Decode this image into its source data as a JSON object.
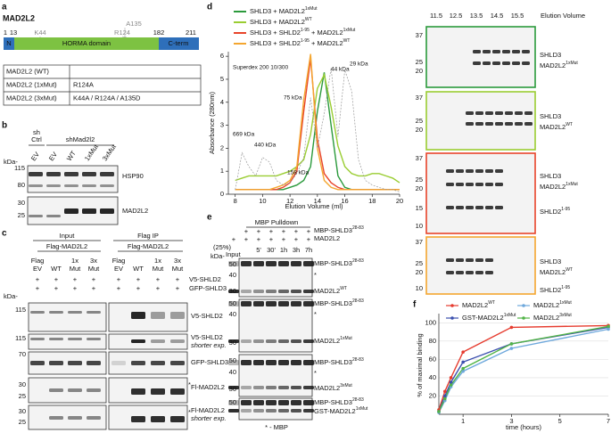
{
  "panels": {
    "a": {
      "letter": "a",
      "title": "MAD2L2",
      "residues": [
        1,
        13,
        182,
        211
      ],
      "mutations": [
        "K44",
        "R124",
        "A135"
      ],
      "domains": [
        "N",
        "HORMA domain",
        "C-term"
      ],
      "table": [
        [
          "MAD2L2 (WT)"
        ],
        [
          "MAD2L2 (1xMut)",
          "R124A"
        ],
        [
          "MAD2L2 (3xMut)",
          "K44A / R124A / A135D"
        ]
      ]
    },
    "b": {
      "letter": "b",
      "control": [
        "sh",
        "Ctrl"
      ],
      "knockdown": "shMad2l2",
      "lanes": [
        "EV",
        "EV",
        "WT",
        "1xMut",
        "3xMut"
      ],
      "kda": "kDa-",
      "blots": [
        {
          "markers": [
            115,
            80
          ],
          "label": "HSP90"
        },
        {
          "markers": [
            30,
            25
          ],
          "label": "MAD2L2"
        }
      ]
    },
    "c": {
      "letter": "c",
      "groups": [
        {
          "header": "Input",
          "construct": "Flag-MAD2L2",
          "lane_flag": "Flag",
          "lane_top": [
            "1x",
            "3x"
          ],
          "lane_bottom": [
            "EV",
            "WT",
            "Mut",
            "Mut"
          ]
        },
        {
          "header": "Flag IP",
          "construct": "Flag-MAD2L2",
          "lane_flag": "Flag",
          "lane_top": [
            "1x",
            "3x"
          ],
          "lane_bottom": [
            "EV",
            "WT",
            "Mut",
            "Mut"
          ]
        }
      ],
      "treatments": [
        {
          "label": "V5-SHLD2",
          "signs": [
            "+",
            "+",
            "+",
            "+",
            "+",
            "+",
            "+",
            "+"
          ]
        },
        {
          "label": "GFP-SHLD3",
          "signs": [
            "+",
            "+",
            "+",
            "+",
            "+",
            "+",
            "+",
            "+"
          ]
        }
      ],
      "kda": "kDa-",
      "blots": [
        {
          "markers": [
            115
          ],
          "label": "V5-SHLD2"
        },
        {
          "markers": [
            115
          ],
          "label": "V5-SHLD2",
          "note": "shorter exp."
        },
        {
          "markers": [
            70
          ],
          "label": "GFP-SHLD3"
        },
        {
          "markers": [
            30,
            25
          ],
          "label": "Fl-MAD2L2",
          "star": "*"
        },
        {
          "markers": [
            30,
            25
          ],
          "label": "Fl-MAD2L2",
          "note": "shorter exp.",
          "star": "*"
        }
      ]
    },
    "d": {
      "letter": "d",
      "gel_header": "Elution Volume",
      "volumes": [
        11.5,
        12.5,
        13.5,
        14.5,
        15.5
      ],
      "gels": [
        {
          "markers": [
            37,
            25,
            20
          ],
          "labels": [
            [
              "SHLD3"
            ],
            [
              "MAD2L2",
              "1xMut"
            ]
          ]
        },
        {
          "markers": [
            37,
            25,
            20
          ],
          "labels": [
            [
              "SHLD3"
            ],
            [
              "MAD2L2",
              "WT"
            ]
          ]
        },
        {
          "markers": [
            37,
            25,
            20,
            15,
            10
          ],
          "labels": [
            [
              "SHLD3"
            ],
            [
              "MAD2L2",
              "1xMut"
            ],
            [
              "SHLD2",
              "1-95"
            ]
          ]
        },
        {
          "markers": [
            37,
            25,
            20,
            10
          ],
          "labels": [
            [
              "SHLD3"
            ],
            [
              "MAD2L2",
              "WT"
            ],
            [
              "SHLD2",
              "1-95"
            ]
          ]
        }
      ]
    },
    "e": {
      "letter": "e",
      "header": "MBP Pulldown",
      "reagents": [
        {
          "label": [
            "MBP-SHLD3",
            "28-83"
          ],
          "signs": [
            "+",
            "+",
            "+",
            "+",
            "+",
            "+"
          ]
        },
        {
          "label": "MAD2L2",
          "signs": [
            "+",
            "+",
            "+",
            "+",
            "+",
            "+",
            "+"
          ]
        }
      ],
      "input": [
        "(25%)",
        "Input"
      ],
      "times": [
        "5'",
        "30'",
        "1h",
        "3h",
        "7h"
      ],
      "kda": "kDa-",
      "gels": [
        {
          "markers": [
            50,
            40,
            30
          ],
          "labels": [
            [
              "MBP-SHLD3",
              "28-83"
            ],
            "*",
            [
              "MAD2L2",
              "WT"
            ]
          ]
        },
        {
          "markers": [
            50,
            40,
            30
          ],
          "labels": [
            [
              "MBP-SHLD3",
              "28-83"
            ],
            "*",
            [
              "MAD2L2",
              "1xMut"
            ]
          ]
        },
        {
          "markers": [
            50,
            40,
            30
          ],
          "labels": [
            [
              "MBP-SHLD3",
              "28-83"
            ],
            "*",
            [
              "MAD2L2",
              "3xMut"
            ]
          ]
        },
        {
          "markers": [
            50
          ],
          "labels": [
            [
              "MBP-SHLD3",
              "28-83"
            ],
            [
              "GST-MAD2L2",
              "1xMut"
            ]
          ]
        }
      ],
      "footnote": "* - MBP"
    },
    "f": {
      "letter": "f"
    }
  },
  "chart_data": [
    {
      "type": "line",
      "xlabel": "Elution Volume (ml)",
      "ylabel": "Absorbance (280nm)",
      "annotations": [
        "Superdex 200 10/300",
        "669 kDa",
        "440 kDa",
        "158 kDa",
        "75 kDa",
        "44 kDa",
        "29 kDa"
      ],
      "x": [
        8,
        8.5,
        9,
        9.5,
        10,
        10.5,
        11,
        11.5,
        12,
        12.5,
        13,
        13.5,
        14,
        14.5,
        15,
        15.5,
        16,
        16.5,
        17,
        17.5,
        18,
        18.5,
        19,
        19.5,
        20
      ],
      "xlim": [
        7.5,
        20
      ],
      "ylim": [
        0,
        6.2
      ],
      "xticks": [
        8,
        10,
        12,
        14,
        16,
        18,
        20
      ],
      "yticks": [
        0,
        1,
        2,
        3,
        4,
        5,
        6
      ],
      "series": [
        {
          "name": [
            "SHLD3 + MAD2L2",
            "1xMut"
          ],
          "color": "#2b9a3c",
          "values": [
            0.2,
            0.2,
            0.2,
            0.2,
            0.2,
            0.2,
            0.2,
            0.2,
            0.3,
            0.4,
            0.6,
            1.2,
            3.6,
            5.3,
            3.0,
            0.8,
            0.3,
            0.2,
            0.2,
            0.2,
            0.2,
            0.2,
            0.2,
            0.2,
            0.2
          ]
        },
        {
          "name": [
            "SHLD3 + MAD2L2",
            "WT"
          ],
          "color": "#9acd32",
          "values": [
            0.6,
            0.7,
            0.8,
            0.8,
            0.8,
            0.8,
            0.8,
            0.9,
            1.0,
            1.2,
            1.5,
            2.6,
            4.6,
            5.2,
            3.8,
            2.1,
            1.2,
            0.9,
            0.8,
            0.8,
            0.9,
            0.9,
            0.8,
            0.7,
            0.5
          ]
        },
        {
          "name": [
            "SHLD3 + SHLD2",
            "1-95",
            " + MAD2L2",
            "1xMut"
          ],
          "color": "#e8442a",
          "values": [
            0.2,
            0.2,
            0.2,
            0.2,
            0.2,
            0.2,
            0.2,
            0.3,
            0.5,
            1.0,
            3.6,
            5.9,
            2.4,
            0.9,
            0.5,
            0.3,
            0.2,
            0.2,
            0.2,
            0.2,
            0.2,
            0.2,
            0.2,
            0.2,
            0.2
          ]
        },
        {
          "name": [
            "SHLD3 + SHLD2",
            "1-95",
            " + MAD2L2",
            "WT"
          ],
          "color": "#f4a630",
          "values": [
            0.2,
            0.2,
            0.2,
            0.2,
            0.2,
            0.2,
            0.3,
            0.4,
            0.6,
            1.2,
            4.1,
            6.1,
            2.0,
            0.6,
            0.3,
            0.2,
            0.2,
            0.2,
            0.2,
            0.2,
            0.2,
            0.2,
            0.2,
            0.2,
            0.2
          ]
        },
        {
          "color": "#999999",
          "dashed": true,
          "values": [
            0.2,
            1.8,
            1.2,
            0.8,
            1.6,
            1.4,
            0.6,
            0.4,
            0.5,
            0.9,
            1.6,
            4.2,
            2.0,
            3.5,
            5.5,
            2.5,
            5.4,
            4.5,
            1.5,
            0.6,
            0.4,
            0.3,
            0.2,
            0.2,
            0.1
          ]
        }
      ]
    },
    {
      "type": "line",
      "xlabel": "time (hours)",
      "ylabel": "% of maximal binding",
      "grid": true,
      "legend": "top",
      "x": [
        0,
        0.25,
        0.5,
        1,
        3,
        7
      ],
      "xlim": [
        0,
        7
      ],
      "ylim": [
        0,
        110
      ],
      "xticks": [
        1,
        3,
        5,
        7
      ],
      "yticks": [
        20,
        40,
        60,
        80,
        100
      ],
      "series": [
        {
          "name": [
            "MAD2L2",
            "WT"
          ],
          "color": "#e63b2e",
          "values": [
            5,
            25,
            40,
            68,
            95,
            97
          ]
        },
        {
          "name": [
            "GST-MAD2L2",
            "1xMut"
          ],
          "color": "#3b4fae",
          "values": [
            3,
            20,
            35,
            57,
            77,
            95
          ]
        },
        {
          "name": [
            "MAD2L2",
            "1xMut"
          ],
          "color": "#6ea8dc",
          "values": [
            2,
            15,
            30,
            47,
            72,
            93
          ]
        },
        {
          "name": [
            "MAD2L2",
            "3xMut"
          ],
          "color": "#52b447",
          "values": [
            3,
            17,
            32,
            50,
            77,
            96
          ]
        }
      ]
    }
  ]
}
